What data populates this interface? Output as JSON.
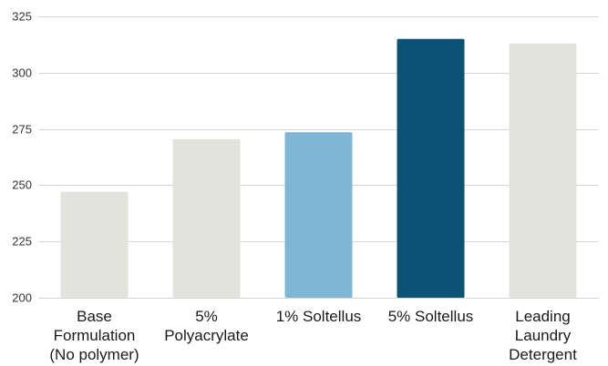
{
  "chart_data": {
    "type": "bar",
    "title": "",
    "xlabel": "",
    "ylabel": "",
    "categories": [
      [
        "Base",
        "Formulation",
        "(No polymer)"
      ],
      [
        "5%",
        "Polyacrylate"
      ],
      [
        "1% Soltellus"
      ],
      [
        "5% Soltellus"
      ],
      [
        "Leading",
        "Laundry",
        "Detergent"
      ]
    ],
    "values": [
      247,
      270.5,
      273.5,
      315,
      313
    ],
    "colors": [
      "#e2e3dc",
      "#e2e3dc",
      "#7fb6d4",
      "#0b5275",
      "#e2e3dc"
    ],
    "ylim": [
      200,
      325
    ],
    "yticks": [
      200,
      225,
      250,
      275,
      300,
      325
    ],
    "grid": true,
    "legend": "none"
  }
}
